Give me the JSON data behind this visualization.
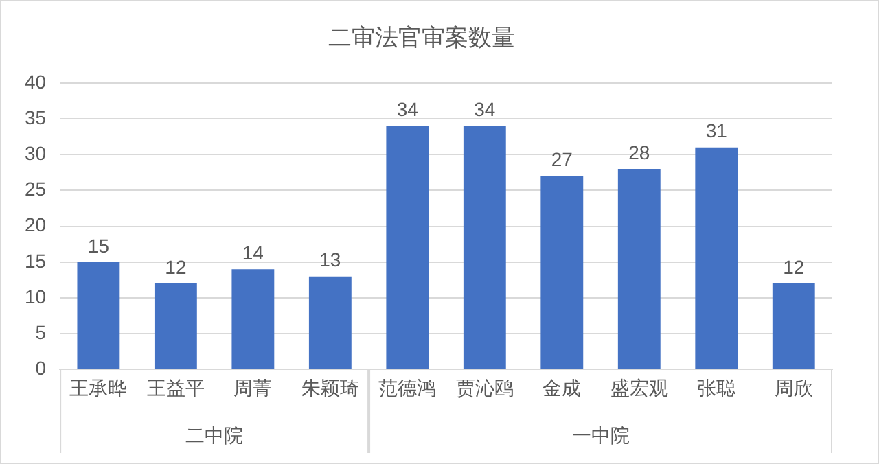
{
  "chart_data": {
    "type": "bar",
    "title": "二审法官审案数量",
    "categories": [
      "王承晔",
      "王益平",
      "周菁",
      "朱颖琦",
      "范德鸿",
      "贾沁鸥",
      "金成",
      "盛宏观",
      "张聪",
      "周欣"
    ],
    "values": [
      15,
      12,
      14,
      13,
      34,
      34,
      27,
      28,
      31,
      12
    ],
    "color": "#4472c4",
    "ylim": [
      0,
      40
    ],
    "yticks": [
      0,
      5,
      10,
      15,
      20,
      25,
      30,
      35,
      40
    ],
    "grid": "y",
    "data_labels": true,
    "annotations": [
      "二中院",
      "一中院"
    ]
  }
}
